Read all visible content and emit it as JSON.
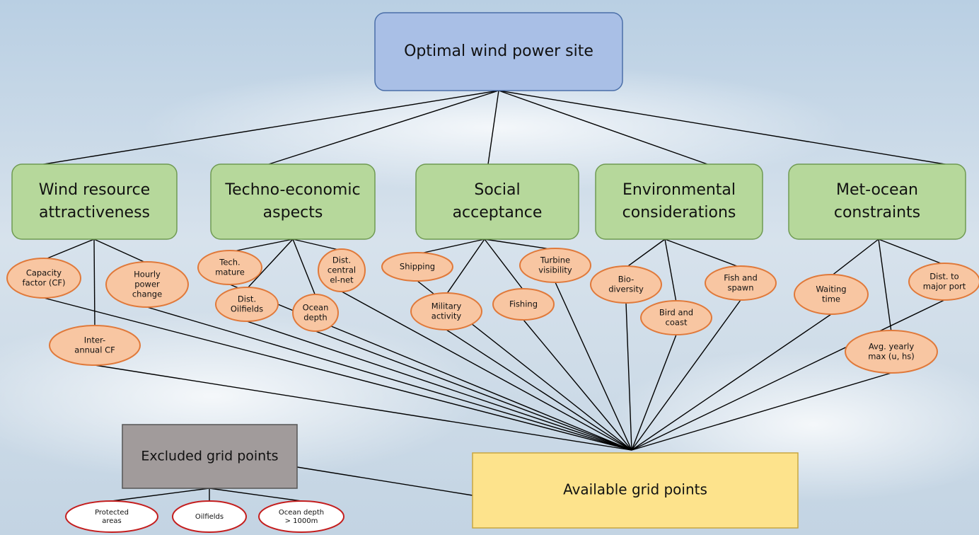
{
  "root": {
    "label": "Optimal wind power site"
  },
  "criteria": [
    {
      "label": [
        "Wind resource",
        "attractiveness"
      ],
      "factors": [
        {
          "label": [
            "Capacity",
            "factor (CF)"
          ]
        },
        {
          "label": [
            "Hourly",
            "power",
            "change"
          ]
        },
        {
          "label": [
            "Inter-",
            "annual CF"
          ]
        }
      ]
    },
    {
      "label": [
        "Techno-economic",
        "aspects"
      ],
      "factors": [
        {
          "label": [
            "Tech.",
            "mature"
          ]
        },
        {
          "label": [
            "Dist.",
            "Oilfields"
          ]
        },
        {
          "label": [
            "Ocean",
            "depth"
          ]
        },
        {
          "label": [
            "Dist.",
            "central",
            "el-net"
          ]
        }
      ]
    },
    {
      "label": [
        "Social",
        "acceptance"
      ],
      "factors": [
        {
          "label": [
            "Shipping"
          ]
        },
        {
          "label": [
            "Military",
            "activity"
          ]
        },
        {
          "label": [
            "Fishing"
          ]
        },
        {
          "label": [
            "Turbine",
            "visibility"
          ]
        }
      ]
    },
    {
      "label": [
        "Environmental",
        "considerations"
      ],
      "factors": [
        {
          "label": [
            "Bio-",
            "diversity"
          ]
        },
        {
          "label": [
            "Bird and",
            "coast"
          ]
        },
        {
          "label": [
            "Fish and",
            "spawn"
          ]
        }
      ]
    },
    {
      "label": [
        "Met-ocean",
        "constraints"
      ],
      "factors": [
        {
          "label": [
            "Waiting",
            "time"
          ]
        },
        {
          "label": [
            "Dist. to",
            "major port"
          ]
        },
        {
          "label": [
            "Avg. yearly",
            "max (u, hs)"
          ]
        }
      ]
    }
  ],
  "available": {
    "label": "Available grid points"
  },
  "excluded": {
    "label": "Excluded grid points",
    "items": [
      {
        "label": [
          "Protected",
          "areas"
        ]
      },
      {
        "label": [
          "Oilfields"
        ]
      },
      {
        "label": [
          "Ocean depth",
          "> 1000m"
        ]
      }
    ]
  }
}
